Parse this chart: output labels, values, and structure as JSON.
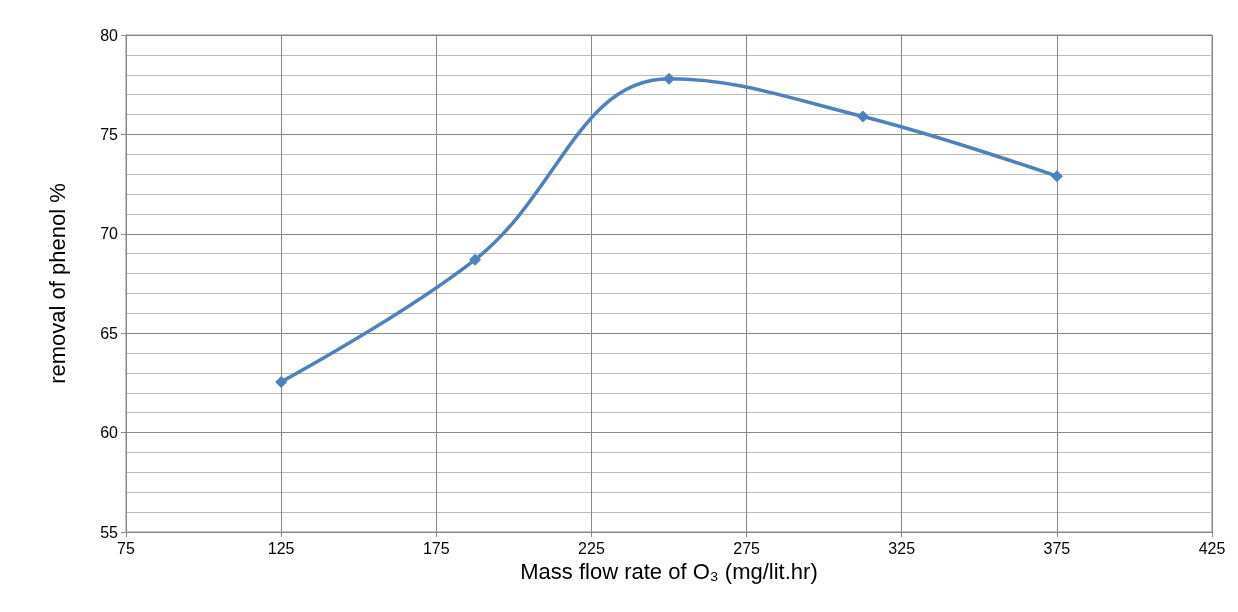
{
  "chart_data": {
    "type": "line",
    "xlabel": "Mass flow rate of O₃ (mg/lit.hr)",
    "ylabel": "removal of phenol %",
    "x": [
      125,
      187.5,
      250,
      312.5,
      375
    ],
    "series": [
      {
        "color": "#4f81bd",
        "values": [
          62.55,
          68.7,
          77.8,
          75.9,
          72.9
        ]
      }
    ],
    "xlim": [
      75,
      425
    ],
    "xticks": [
      75,
      125,
      175,
      225,
      275,
      325,
      375,
      425
    ],
    "ylim": [
      55,
      80
    ],
    "yticks": [
      55,
      60,
      65,
      70,
      75,
      80
    ],
    "grid": true,
    "marker": "diamond",
    "line_style": "solid"
  }
}
